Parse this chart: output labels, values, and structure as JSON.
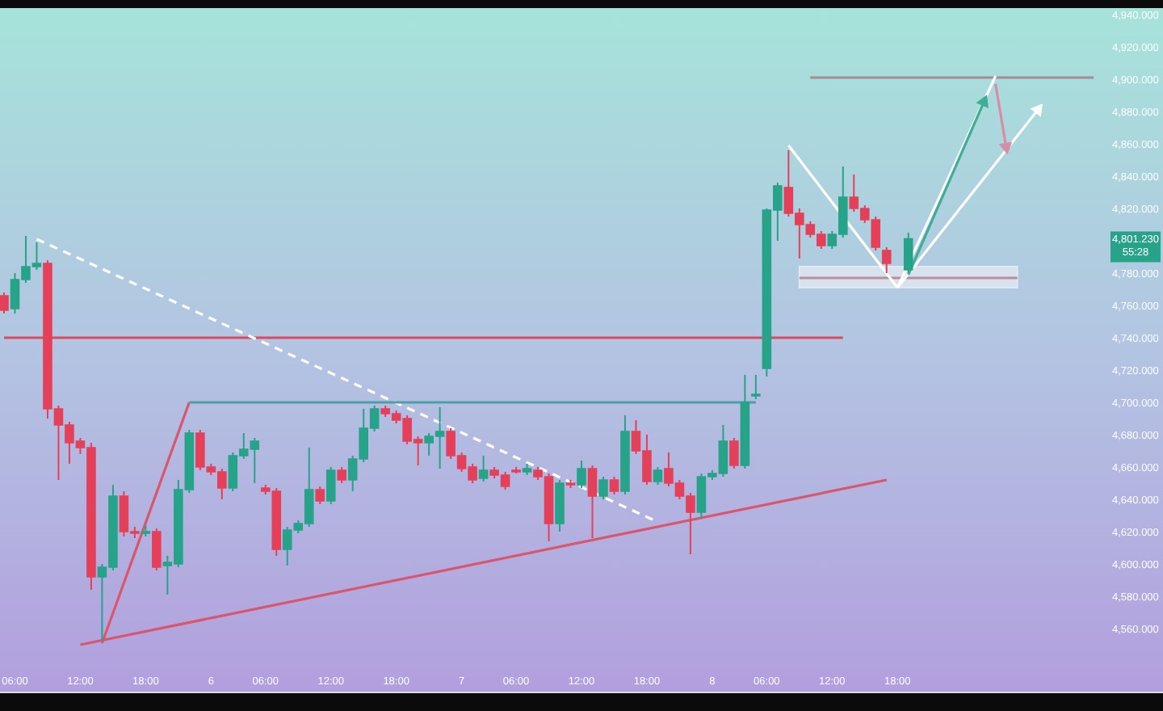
{
  "chart_data": {
    "type": "candlestick",
    "categories": [
      null,
      "06:00",
      null,
      null,
      null,
      null,
      null,
      "12:00",
      null,
      null,
      null,
      null,
      null,
      "18:00",
      null,
      null,
      null,
      null,
      null,
      "6",
      null,
      null,
      null,
      null,
      "06:00",
      null,
      null,
      null,
      null,
      null,
      "12:00",
      null,
      null,
      null,
      null,
      null,
      "18:00",
      null,
      null,
      null,
      null,
      null,
      "7",
      null,
      null,
      null,
      null,
      "06:00",
      null,
      null,
      null,
      null,
      null,
      "12:00",
      null,
      null,
      null,
      null,
      null,
      "18:00",
      null,
      null,
      null,
      null,
      null,
      "8",
      null,
      null,
      null,
      null,
      "06:00",
      null,
      null,
      null,
      null,
      null,
      "12:00",
      null,
      null,
      null,
      null,
      null,
      "18:00",
      null,
      null,
      null,
      null,
      null,
      null,
      null,
      null,
      null,
      null,
      null,
      null,
      null,
      null,
      null,
      null,
      null,
      null,
      null,
      null,
      null,
      null,
      null,
      null
    ],
    "ohlc": [
      [
        4766,
        4768,
        4755,
        4757
      ],
      [
        4758,
        4780,
        4755,
        4776
      ],
      [
        4776,
        4803,
        4774,
        4784
      ],
      [
        4784,
        4799,
        4782,
        4786
      ],
      [
        4786,
        4788,
        4690,
        4696
      ],
      [
        4696,
        4698,
        4652,
        4686
      ],
      [
        4686,
        4688,
        4662,
        4675
      ],
      [
        4676,
        4678,
        4668,
        4672
      ],
      [
        4672,
        4675,
        4584,
        4592
      ],
      [
        4592,
        4600,
        4552,
        4598
      ],
      [
        4598,
        4649,
        4596,
        4642
      ],
      [
        4642,
        4645,
        4617,
        4620
      ],
      [
        4620,
        4623,
        4616,
        4619
      ],
      [
        4619,
        4624,
        4617,
        4620
      ],
      [
        4620,
        4622,
        4596,
        4598
      ],
      [
        4599,
        4605,
        4581,
        4601
      ],
      [
        4600,
        4652,
        4598,
        4646
      ],
      [
        4646,
        4683,
        4644,
        4681
      ],
      [
        4681,
        4683,
        4658,
        4660
      ],
      [
        4660,
        4662,
        4655,
        4657
      ],
      [
        4657,
        4659,
        4640,
        4647
      ],
      [
        4647,
        4669,
        4645,
        4667
      ],
      [
        4667,
        4681,
        4665,
        4671
      ],
      [
        4671,
        4678,
        4650,
        4676
      ],
      [
        4647,
        4649,
        4643,
        4645
      ],
      [
        4645,
        4647,
        4605,
        4609
      ],
      [
        4609,
        4623,
        4599,
        4621
      ],
      [
        4621,
        4627,
        4619,
        4625
      ],
      [
        4625,
        4672,
        4623,
        4646
      ],
      [
        4646,
        4648,
        4637,
        4639
      ],
      [
        4639,
        4660,
        4637,
        4658
      ],
      [
        4658,
        4660,
        4650,
        4652
      ],
      [
        4652,
        4667,
        4645,
        4665
      ],
      [
        4665,
        4696,
        4663,
        4684
      ],
      [
        4684,
        4698,
        4682,
        4696
      ],
      [
        4696,
        4698,
        4691,
        4693
      ],
      [
        4693,
        4695,
        4687,
        4689
      ],
      [
        4690,
        4692,
        4674,
        4676
      ],
      [
        4677,
        4679,
        4661,
        4675
      ],
      [
        4675,
        4681,
        4667,
        4679
      ],
      [
        4679,
        4697,
        4659,
        4682
      ],
      [
        4682,
        4684,
        4665,
        4667
      ],
      [
        4667,
        4669,
        4657,
        4659
      ],
      [
        4660,
        4662,
        4650,
        4652
      ],
      [
        4653,
        4667,
        4651,
        4658
      ],
      [
        4658,
        4660,
        4653,
        4655
      ],
      [
        4655,
        4657,
        4646,
        4648
      ],
      [
        4658,
        4660,
        4656,
        4657
      ],
      [
        4657,
        4662,
        4655,
        4659
      ],
      [
        4658,
        4660,
        4652,
        4654
      ],
      [
        4654,
        4656,
        4614,
        4625
      ],
      [
        4625,
        4652,
        4620,
        4650
      ],
      [
        4650,
        4652,
        4647,
        4649
      ],
      [
        4649,
        4664,
        4647,
        4659
      ],
      [
        4659,
        4661,
        4616,
        4642
      ],
      [
        4642,
        4654,
        4640,
        4652
      ],
      [
        4652,
        4654,
        4643,
        4645
      ],
      [
        4645,
        4692,
        4643,
        4682
      ],
      [
        4682,
        4689,
        4668,
        4670
      ],
      [
        4670,
        4680,
        4649,
        4651
      ],
      [
        4651,
        4660,
        4649,
        4658
      ],
      [
        4659,
        4669,
        4648,
        4650
      ],
      [
        4650,
        4652,
        4640,
        4642
      ],
      [
        4642,
        4644,
        4606,
        4632
      ],
      [
        4632,
        4656,
        4628,
        4654
      ],
      [
        4654,
        4658,
        4652,
        4656
      ],
      [
        4656,
        4686,
        4654,
        4676
      ],
      [
        4676,
        4678,
        4659,
        4661
      ],
      [
        4661,
        4717,
        4659,
        4700
      ],
      [
        4704,
        4717,
        4702,
        4705
      ],
      [
        4721,
        4820,
        4716,
        4819
      ],
      [
        4819,
        4836,
        4800,
        4834
      ],
      [
        4833,
        4856,
        4815,
        4817
      ],
      [
        4817,
        4820,
        4789,
        4810
      ],
      [
        4810,
        4812,
        4802,
        4804
      ],
      [
        4804,
        4806,
        4795,
        4797
      ],
      [
        4797,
        4806,
        4795,
        4804
      ],
      [
        4804,
        4846,
        4802,
        4827
      ],
      [
        4827,
        4841,
        4818,
        4820
      ],
      [
        4820,
        4822,
        4811,
        4813
      ],
      [
        4813,
        4815,
        4794,
        4796
      ],
      [
        4794,
        4796,
        4780,
        4786
      ],
      null,
      [
        4782,
        4805,
        4780,
        4801.23
      ],
      null,
      null,
      null,
      null,
      null,
      null,
      null,
      null,
      null,
      null,
      null,
      null,
      null,
      null,
      null,
      null,
      null,
      null,
      null,
      null,
      null,
      null,
      null
    ],
    "colors": [
      "#e4405a",
      "#26a389",
      "#26a389",
      "#26a389",
      "#e4405a",
      "#e4405a",
      "#e4405a",
      "#e4405a",
      "#e4405a",
      "#26a389",
      "#26a389",
      "#e4405a",
      "#e4405a",
      "#26a389",
      "#e4405a",
      "#26a389",
      "#26a389",
      "#26a389",
      "#e4405a",
      "#e4405a",
      "#e4405a",
      "#26a389",
      "#26a389",
      "#26a389",
      "#e4405a",
      "#e4405a",
      "#26a389",
      "#26a389",
      "#26a389",
      "#e4405a",
      "#26a389",
      "#e4405a",
      "#26a389",
      "#26a389",
      "#26a389",
      "#e4405a",
      "#e4405a",
      "#e4405a",
      "#e4405a",
      "#26a389",
      "#26a389",
      "#e4405a",
      "#e4405a",
      "#e4405a",
      "#26a389",
      "#e4405a",
      "#e4405a",
      "#e4405a",
      "#26a389",
      "#e4405a",
      "#e4405a",
      "#26a389",
      "#e4405a",
      "#26a389",
      "#e4405a",
      "#26a389",
      "#e4405a",
      "#26a389",
      "#e4405a",
      "#e4405a",
      "#26a389",
      "#e4405a",
      "#e4405a",
      "#e4405a",
      "#26a389",
      "#26a389",
      "#26a389",
      "#e4405a",
      "#26a389",
      "#26a389",
      "#26a389",
      "#26a389",
      "#e4405a",
      "#e4405a",
      "#e4405a",
      "#e4405a",
      "#26a389",
      "#26a389",
      "#e4405a",
      "#e4405a",
      "#e4405a",
      "#e4405a",
      null,
      "#26a389",
      null,
      null,
      null,
      null,
      null,
      null,
      null,
      null,
      null,
      null,
      null,
      null,
      null,
      null,
      null,
      null,
      null,
      null,
      null,
      null,
      null,
      null,
      null
    ],
    "ylim": [
      4521,
      4944
    ],
    "yticks": [
      {
        "value": 4560,
        "label": "4,560.000"
      },
      {
        "value": 4580,
        "label": "4,580.000"
      },
      {
        "value": 4600,
        "label": "4,600.000"
      },
      {
        "value": 4620,
        "label": "4,620.000"
      },
      {
        "value": 4640,
        "label": "4,640.000"
      },
      {
        "value": 4660,
        "label": "4,660.000"
      },
      {
        "value": 4680,
        "label": "4,680.000"
      },
      {
        "value": 4700,
        "label": "4,700.000"
      },
      {
        "value": 4720,
        "label": "4,720.000"
      },
      {
        "value": 4740,
        "label": "4,740.000"
      },
      {
        "value": 4760,
        "label": "4,760.000"
      },
      {
        "value": 4780,
        "label": "4,780.000"
      },
      {
        "value": 4820,
        "label": "4,820.000"
      },
      {
        "value": 4840,
        "label": "4,840.000"
      },
      {
        "value": 4860,
        "label": "4,860.000"
      },
      {
        "value": 4880,
        "label": "4,880.000"
      },
      {
        "value": 4900,
        "label": "4,900.000"
      },
      {
        "value": 4920,
        "label": "4,920.000"
      },
      {
        "value": 4940,
        "label": "4,940.000"
      }
    ],
    "series": [
      {
        "type": "line",
        "color": "#dd4a5e",
        "values": [
          4740,
          null,
          null,
          null,
          null,
          null,
          null,
          null,
          null,
          null,
          null,
          null,
          null,
          null,
          null,
          null,
          null,
          null,
          null,
          null,
          null,
          null,
          null,
          null,
          null,
          null,
          null,
          null,
          null,
          null,
          null,
          null,
          null,
          null,
          null,
          null,
          null,
          null,
          null,
          null,
          null,
          null,
          null,
          null,
          null,
          null,
          null,
          null,
          null,
          null,
          null,
          null,
          null,
          null,
          null,
          null,
          null,
          null,
          null,
          null,
          null,
          null,
          null,
          null,
          null,
          null,
          null,
          null,
          null,
          null,
          null,
          null,
          null,
          null,
          null,
          null,
          null,
          4740,
          null,
          null,
          null,
          null,
          null,
          null,
          null,
          null,
          null,
          null,
          null,
          null,
          null,
          null,
          null,
          null,
          null,
          null,
          null,
          null,
          null,
          null,
          null,
          null,
          null,
          null,
          null,
          null,
          null
        ]
      },
      {
        "type": "line",
        "color": "#a88a96",
        "values": [
          null,
          null,
          null,
          null,
          null,
          null,
          null,
          null,
          null,
          null,
          null,
          null,
          null,
          null,
          null,
          null,
          null,
          null,
          null,
          null,
          null,
          null,
          null,
          null,
          null,
          null,
          null,
          null,
          null,
          null,
          null,
          null,
          null,
          null,
          null,
          null,
          null,
          null,
          null,
          null,
          null,
          null,
          null,
          null,
          null,
          null,
          null,
          null,
          null,
          null,
          null,
          null,
          null,
          null,
          null,
          null,
          null,
          null,
          null,
          null,
          null,
          null,
          null,
          null,
          null,
          null,
          null,
          null,
          null,
          null,
          null,
          null,
          null,
          null,
          4901,
          null,
          null,
          null,
          null,
          null,
          null,
          null,
          null,
          null,
          null,
          null,
          null,
          null,
          null,
          null,
          null,
          null,
          null,
          null,
          null,
          null,
          null,
          null,
          null,
          null,
          4901,
          null,
          null,
          null,
          null,
          null,
          null
        ]
      },
      {
        "type": "line",
        "color": "#ffffff",
        "line_style": "dashed",
        "values": [
          null,
          null,
          null,
          4801,
          null,
          null,
          null,
          null,
          null,
          null,
          null,
          null,
          null,
          null,
          null,
          null,
          null,
          null,
          null,
          null,
          null,
          null,
          null,
          null,
          null,
          null,
          null,
          null,
          null,
          null,
          null,
          null,
          null,
          null,
          null,
          null,
          null,
          null,
          null,
          null,
          null,
          null,
          null,
          null,
          null,
          null,
          null,
          null,
          null,
          null,
          null,
          null,
          null,
          null,
          null,
          null,
          null,
          null,
          null,
          null,
          4626,
          null,
          null,
          null,
          null,
          null,
          null,
          null,
          null,
          null,
          null,
          null,
          null,
          null,
          null,
          null,
          null,
          null,
          null,
          null,
          null,
          null,
          null,
          null,
          null,
          null,
          null,
          null,
          null,
          null,
          null,
          null,
          null,
          null,
          null,
          null,
          null,
          null,
          null,
          null,
          null,
          null,
          null,
          null,
          null,
          null,
          null
        ]
      },
      {
        "type": "line",
        "color": "#d9566c",
        "values": [
          null,
          null,
          null,
          null,
          null,
          null,
          null,
          4550,
          null,
          null,
          null,
          null,
          null,
          null,
          null,
          null,
          null,
          null,
          null,
          null,
          null,
          null,
          null,
          null,
          null,
          null,
          null,
          null,
          null,
          null,
          null,
          null,
          null,
          null,
          null,
          null,
          null,
          null,
          null,
          null,
          null,
          null,
          null,
          null,
          null,
          null,
          null,
          null,
          null,
          null,
          null,
          null,
          null,
          null,
          null,
          null,
          null,
          null,
          null,
          null,
          null,
          null,
          null,
          null,
          null,
          null,
          null,
          null,
          null,
          null,
          null,
          null,
          null,
          null,
          null,
          null,
          null,
          null,
          null,
          null,
          null,
          4652,
          null,
          null,
          null,
          null,
          null,
          null,
          null,
          null,
          null,
          null,
          null,
          null,
          null,
          null,
          null,
          null,
          null,
          null,
          null,
          null,
          null,
          null,
          null,
          null,
          null
        ]
      },
      {
        "type": "line",
        "color": "#d9566c",
        "values": [
          null,
          null,
          null,
          null,
          null,
          null,
          null,
          null,
          null,
          4551,
          null,
          null,
          null,
          null,
          null,
          null,
          null,
          4700,
          null,
          null,
          null,
          null,
          null,
          null,
          null,
          null,
          null,
          null,
          null,
          null,
          null,
          null,
          null,
          null,
          null,
          null,
          null,
          null,
          null,
          null,
          null,
          null,
          null,
          null,
          null,
          null,
          null,
          null,
          null,
          null,
          null,
          null,
          null,
          null,
          null,
          null,
          null,
          null,
          null,
          null,
          null,
          null,
          null,
          null,
          null,
          null,
          null,
          null,
          null,
          null,
          null,
          null,
          null,
          null,
          null,
          null,
          null,
          null,
          null,
          null,
          null,
          null,
          null,
          null,
          null,
          null,
          null,
          null,
          null,
          null,
          null,
          null,
          null,
          null,
          null,
          null,
          null,
          null,
          null,
          null,
          null,
          null,
          null,
          null,
          null,
          null,
          null
        ]
      },
      {
        "type": "line",
        "color": "#4e9ea6",
        "values": [
          null,
          null,
          null,
          null,
          null,
          null,
          null,
          null,
          null,
          null,
          null,
          null,
          null,
          null,
          null,
          null,
          null,
          4700,
          null,
          null,
          null,
          null,
          null,
          null,
          null,
          null,
          null,
          null,
          null,
          null,
          null,
          null,
          null,
          null,
          null,
          null,
          null,
          null,
          null,
          null,
          null,
          null,
          null,
          null,
          null,
          null,
          null,
          null,
          null,
          null,
          null,
          null,
          null,
          null,
          null,
          null,
          null,
          null,
          null,
          null,
          null,
          null,
          null,
          null,
          null,
          null,
          null,
          null,
          null,
          4700,
          null,
          null,
          null,
          null,
          null,
          null,
          null,
          null,
          null,
          null,
          null,
          null,
          null,
          null,
          null,
          null,
          null,
          null,
          null,
          null,
          null,
          null,
          null,
          null,
          null,
          null,
          null,
          null,
          null,
          null,
          null,
          null,
          null,
          null,
          null,
          null,
          null
        ]
      },
      {
        "type": "line",
        "color": "#b98c9e",
        "values": [
          null,
          null,
          null,
          null,
          null,
          null,
          null,
          null,
          null,
          null,
          null,
          null,
          null,
          null,
          null,
          null,
          null,
          null,
          null,
          null,
          null,
          null,
          null,
          null,
          null,
          null,
          null,
          null,
          null,
          null,
          null,
          null,
          null,
          null,
          null,
          null,
          null,
          null,
          null,
          null,
          null,
          null,
          null,
          null,
          null,
          null,
          null,
          null,
          null,
          null,
          null,
          null,
          null,
          null,
          null,
          null,
          null,
          null,
          null,
          null,
          null,
          null,
          null,
          null,
          null,
          null,
          null,
          null,
          null,
          null,
          null,
          null,
          null,
          4777,
          null,
          null,
          null,
          null,
          null,
          null,
          null,
          null,
          null,
          null,
          null,
          null,
          null,
          null,
          null,
          null,
          null,
          null,
          null,
          4777,
          null,
          null,
          null,
          null,
          null,
          null,
          null,
          null,
          null,
          null,
          null,
          null,
          null
        ],
        "lower": [
          null,
          null,
          null,
          null,
          null,
          null,
          null,
          null,
          null,
          null,
          null,
          null,
          null,
          null,
          null,
          null,
          null,
          null,
          null,
          null,
          null,
          null,
          null,
          null,
          null,
          null,
          null,
          null,
          null,
          null,
          null,
          null,
          null,
          null,
          null,
          null,
          null,
          null,
          null,
          null,
          null,
          null,
          null,
          null,
          null,
          null,
          null,
          null,
          null,
          null,
          null,
          null,
          null,
          null,
          null,
          null,
          null,
          null,
          null,
          null,
          null,
          null,
          null,
          null,
          null,
          null,
          null,
          null,
          null,
          null,
          null,
          null,
          null,
          4771,
          null,
          null,
          null,
          null,
          null,
          null,
          null,
          null,
          null,
          null,
          null,
          null,
          null,
          null,
          null,
          null,
          null,
          null,
          null,
          4771,
          null,
          null,
          null,
          null,
          null,
          null,
          null,
          null,
          null,
          null,
          null,
          null,
          null
        ],
        "upper": [
          null,
          null,
          null,
          null,
          null,
          null,
          null,
          null,
          null,
          null,
          null,
          null,
          null,
          null,
          null,
          null,
          null,
          null,
          null,
          null,
          null,
          null,
          null,
          null,
          null,
          null,
          null,
          null,
          null,
          null,
          null,
          null,
          null,
          null,
          null,
          null,
          null,
          null,
          null,
          null,
          null,
          null,
          null,
          null,
          null,
          null,
          null,
          null,
          null,
          null,
          null,
          null,
          null,
          null,
          null,
          null,
          null,
          null,
          null,
          null,
          null,
          null,
          null,
          null,
          null,
          null,
          null,
          null,
          null,
          null,
          null,
          null,
          null,
          4784,
          null,
          null,
          null,
          null,
          null,
          null,
          null,
          null,
          null,
          null,
          null,
          null,
          null,
          null,
          null,
          null,
          null,
          null,
          null,
          4784,
          null,
          null,
          null,
          null,
          null,
          null,
          null,
          null,
          null,
          null,
          null,
          null,
          null
        ]
      },
      {
        "type": "line",
        "color": "#ffffff",
        "values": [
          null,
          null,
          null,
          null,
          null,
          null,
          null,
          null,
          null,
          null,
          null,
          null,
          null,
          null,
          null,
          null,
          null,
          null,
          null,
          null,
          null,
          null,
          null,
          null,
          null,
          null,
          null,
          null,
          null,
          null,
          null,
          null,
          null,
          null,
          null,
          null,
          null,
          null,
          null,
          null,
          null,
          null,
          null,
          null,
          null,
          null,
          null,
          null,
          null,
          null,
          null,
          null,
          null,
          null,
          null,
          null,
          null,
          null,
          null,
          null,
          null,
          null,
          null,
          null,
          null,
          null,
          null,
          null,
          null,
          null,
          null,
          null,
          4859,
          null,
          null,
          null,
          null,
          null,
          null,
          null,
          null,
          null,
          4771,
          null,
          null,
          null,
          null,
          null,
          null,
          null,
          null,
          null,
          null,
          null,
          null,
          null,
          null,
          null,
          null,
          null,
          null,
          null,
          null,
          null,
          null,
          null,
          null
        ]
      },
      {
        "type": "line",
        "color": "#ffffff",
        "marker": "triangle",
        "values": [
          null,
          null,
          null,
          null,
          null,
          null,
          null,
          null,
          null,
          null,
          null,
          null,
          null,
          null,
          null,
          null,
          null,
          null,
          null,
          null,
          null,
          null,
          null,
          null,
          null,
          null,
          null,
          null,
          null,
          null,
          null,
          null,
          null,
          null,
          null,
          null,
          null,
          null,
          null,
          null,
          null,
          null,
          null,
          null,
          null,
          null,
          null,
          null,
          null,
          null,
          null,
          null,
          null,
          null,
          null,
          null,
          null,
          null,
          null,
          null,
          null,
          null,
          null,
          null,
          null,
          null,
          null,
          null,
          null,
          null,
          null,
          null,
          null,
          null,
          null,
          null,
          null,
          null,
          null,
          null,
          null,
          null,
          4771,
          null,
          null,
          null,
          null,
          null,
          null,
          null,
          null,
          null,
          null,
          null,
          null,
          4882,
          null,
          null,
          null,
          null,
          null,
          null,
          null,
          null,
          null,
          null,
          null
        ]
      },
      {
        "type": "line",
        "color": "#ffffff",
        "values": [
          null,
          null,
          null,
          null,
          null,
          null,
          null,
          null,
          null,
          null,
          null,
          null,
          null,
          null,
          null,
          null,
          null,
          null,
          null,
          null,
          null,
          null,
          null,
          null,
          null,
          null,
          null,
          null,
          null,
          null,
          null,
          null,
          null,
          null,
          null,
          null,
          null,
          null,
          null,
          null,
          null,
          null,
          null,
          null,
          null,
          null,
          null,
          null,
          null,
          null,
          null,
          null,
          null,
          null,
          null,
          null,
          null,
          null,
          null,
          null,
          null,
          null,
          null,
          null,
          null,
          null,
          null,
          null,
          null,
          null,
          null,
          null,
          null,
          null,
          null,
          null,
          null,
          null,
          null,
          null,
          null,
          null,
          4771,
          null,
          null,
          null,
          null,
          null,
          null,
          null,
          null,
          4902,
          null,
          null,
          null,
          null,
          null,
          null,
          null,
          null,
          null,
          null,
          null,
          null,
          null,
          null,
          null
        ]
      },
      {
        "type": "line",
        "color": "#3fae96",
        "marker": "triangle",
        "values": [
          null,
          null,
          null,
          null,
          null,
          null,
          null,
          null,
          null,
          null,
          null,
          null,
          null,
          null,
          null,
          null,
          null,
          null,
          null,
          null,
          null,
          null,
          null,
          null,
          null,
          null,
          null,
          null,
          null,
          null,
          null,
          null,
          null,
          null,
          null,
          null,
          null,
          null,
          null,
          null,
          null,
          null,
          null,
          null,
          null,
          null,
          null,
          null,
          null,
          null,
          null,
          null,
          null,
          null,
          null,
          null,
          null,
          null,
          null,
          null,
          null,
          null,
          null,
          null,
          null,
          null,
          null,
          null,
          null,
          null,
          null,
          null,
          null,
          null,
          null,
          null,
          null,
          null,
          null,
          null,
          null,
          null,
          null,
          4779,
          null,
          null,
          null,
          null,
          null,
          null,
          4887,
          null,
          null,
          null,
          null,
          null,
          null,
          null,
          null,
          null,
          null,
          null,
          null,
          null,
          null,
          null,
          null
        ]
      },
      {
        "type": "line",
        "color": "#d98ca8",
        "marker": "triangle",
        "values": [
          null,
          null,
          null,
          null,
          null,
          null,
          null,
          null,
          null,
          null,
          null,
          null,
          null,
          null,
          null,
          null,
          null,
          null,
          null,
          null,
          null,
          null,
          null,
          null,
          null,
          null,
          null,
          null,
          null,
          null,
          null,
          null,
          null,
          null,
          null,
          null,
          null,
          null,
          null,
          null,
          null,
          null,
          null,
          null,
          null,
          null,
          null,
          null,
          null,
          null,
          null,
          null,
          null,
          null,
          null,
          null,
          null,
          null,
          null,
          null,
          null,
          null,
          null,
          null,
          null,
          null,
          null,
          null,
          null,
          null,
          null,
          null,
          null,
          null,
          null,
          null,
          null,
          null,
          null,
          null,
          null,
          null,
          null,
          null,
          null,
          null,
          null,
          null,
          null,
          null,
          null,
          4897,
          4857,
          null,
          null,
          null,
          null,
          null,
          null,
          null,
          null,
          null,
          null,
          null,
          null,
          null,
          null
        ]
      }
    ],
    "annotations": [
      "4,801.230\n55:28"
    ],
    "grid": false
  }
}
